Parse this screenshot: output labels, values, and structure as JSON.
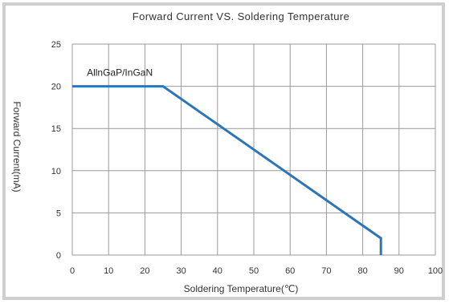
{
  "chart_data": {
    "type": "line",
    "title": "Forward Current VS. Soldering Temperature",
    "xlabel": "Soldering Temperature(℃)",
    "ylabel": "Forward Current(mA)",
    "xlim": [
      0,
      100
    ],
    "ylim": [
      0,
      25
    ],
    "x_ticks": [
      "0",
      "10",
      "20",
      "30",
      "40",
      "50",
      "60",
      "70",
      "80",
      "90",
      "100"
    ],
    "y_ticks": [
      "0",
      "5",
      "10",
      "15",
      "20",
      "25"
    ],
    "grid": true,
    "series": [
      {
        "name": "AllnGaP/InGaN",
        "color": "#2e75b6",
        "x": [
          0,
          25,
          85,
          85
        ],
        "y": [
          20,
          20,
          2,
          0
        ]
      }
    ]
  }
}
